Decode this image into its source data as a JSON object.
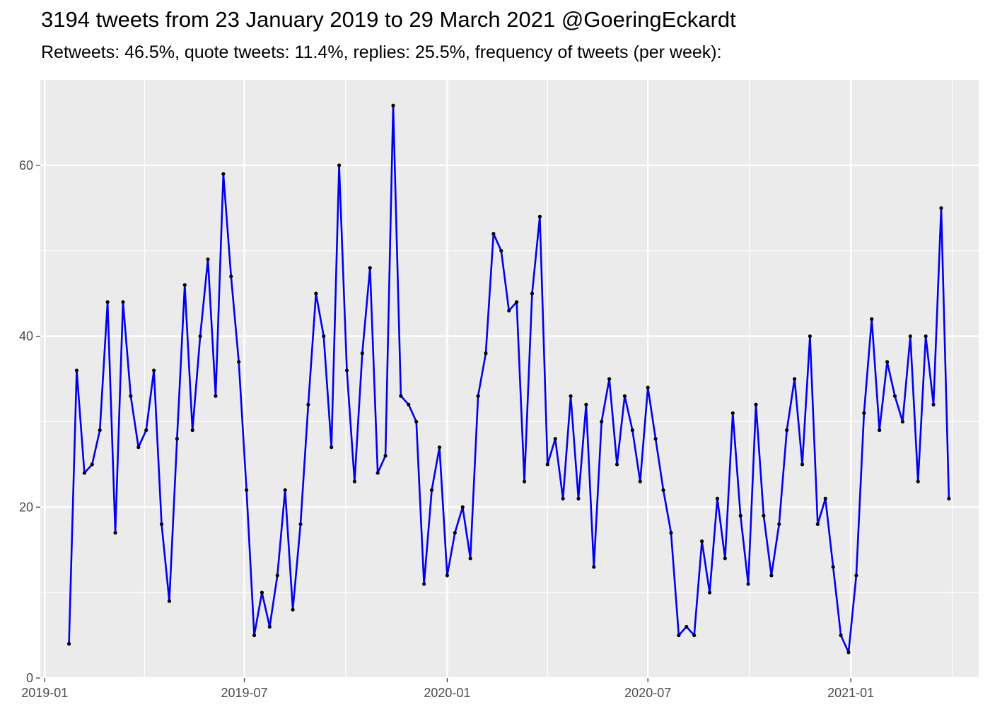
{
  "chart_data": {
    "type": "line",
    "title": "3194 tweets from 23 January 2019 to 29 March 2021 @GoeringEckardt",
    "subtitle": "Retweets: 46.5%, quote tweets: 11.4%, replies: 25.5%, frequency of tweets (per week):",
    "xlabel": "",
    "ylabel": "",
    "x_start": "2019-01-23",
    "x_step_days": 7,
    "xlim": [
      "2018-12-28",
      "2021-04-27"
    ],
    "ylim": [
      0,
      70
    ],
    "x_ticks": [
      {
        "date": "2019-01-01",
        "label": "2019-01"
      },
      {
        "date": "2019-07-01",
        "label": "2019-07"
      },
      {
        "date": "2020-01-01",
        "label": "2020-01"
      },
      {
        "date": "2020-07-01",
        "label": "2020-07"
      },
      {
        "date": "2021-01-01",
        "label": "2021-01"
      }
    ],
    "y_ticks": [
      0,
      20,
      40,
      60
    ],
    "grid": true,
    "line_color": "#0000ee",
    "point_color": "#000000",
    "panel_color": "#ebebeb",
    "values": [
      4,
      36,
      24,
      25,
      29,
      44,
      17,
      44,
      33,
      27,
      29,
      36,
      18,
      9,
      28,
      46,
      29,
      40,
      49,
      33,
      59,
      47,
      37,
      22,
      5,
      10,
      6,
      12,
      22,
      8,
      18,
      32,
      45,
      40,
      27,
      60,
      36,
      23,
      38,
      48,
      24,
      26,
      67,
      33,
      32,
      30,
      11,
      22,
      27,
      12,
      17,
      20,
      14,
      33,
      38,
      52,
      50,
      43,
      44,
      23,
      45,
      54,
      25,
      28,
      21,
      33,
      21,
      32,
      13,
      30,
      35,
      25,
      33,
      29,
      23,
      34,
      28,
      22,
      17,
      5,
      6,
      5,
      16,
      10,
      21,
      14,
      31,
      19,
      11,
      32,
      19,
      12,
      18,
      29,
      35,
      25,
      40,
      18,
      21,
      13,
      5,
      3,
      12,
      31,
      42,
      29,
      37,
      33,
      30,
      40,
      23,
      40,
      32,
      55,
      21
    ]
  }
}
